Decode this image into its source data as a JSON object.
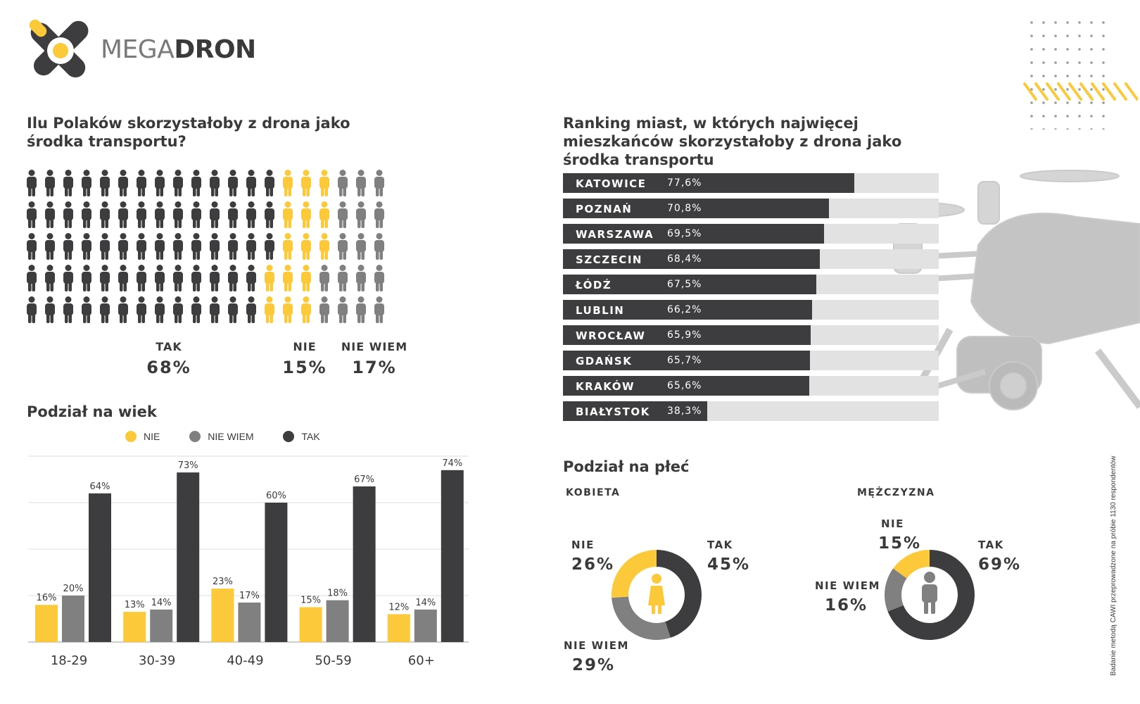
{
  "brand": {
    "name_light": "MEGA",
    "name_bold": "DRON"
  },
  "colors": {
    "tak": "#3d3d3f",
    "nie": "#fcc93a",
    "nie_wiem": "#808080",
    "track": "#e2e2e2"
  },
  "question": {
    "title": "Ilu Polaków skorzystałoby z drona jako środka transportu?",
    "answers": [
      {
        "label": "TAK",
        "value": "68%"
      },
      {
        "label": "NIE",
        "value": "15%"
      },
      {
        "label": "NIE WIEM",
        "value": "17%"
      }
    ]
  },
  "ranking": {
    "title": "Ranking miast, w których najwięcej mieszkańców skorzystałoby z drona jako środka transportu",
    "rows": [
      {
        "city": "KATOWICE",
        "label": "77,6%",
        "value": 77.6
      },
      {
        "city": "POZNAŃ",
        "label": "70,8%",
        "value": 70.8
      },
      {
        "city": "WARSZAWA",
        "label": "69,5%",
        "value": 69.5
      },
      {
        "city": "SZCZECIN",
        "label": "68,4%",
        "value": 68.4
      },
      {
        "city": "ŁÓDŹ",
        "label": "67,5%",
        "value": 67.5
      },
      {
        "city": "LUBLIN",
        "label": "66,2%",
        "value": 66.2
      },
      {
        "city": "WROCŁAW",
        "label": "65,9%",
        "value": 65.9
      },
      {
        "city": "GDAŃSK",
        "label": "65,7%",
        "value": 65.7
      },
      {
        "city": "KRAKÓW",
        "label": "65,6%",
        "value": 65.6
      },
      {
        "city": "BIAŁYSTOK",
        "label": "38,3%",
        "value": 38.3
      }
    ]
  },
  "age": {
    "title": "Podział na wiek",
    "legend": [
      "NIE",
      "NIE WIEM",
      "TAK"
    ]
  },
  "gender": {
    "title": "Podział na płeć",
    "kobieta": {
      "name": "KOBIETA",
      "nie": {
        "label": "NIE",
        "value": "26%"
      },
      "tak": {
        "label": "TAK",
        "value": "45%"
      },
      "nie_wiem": {
        "label": "NIE WIEM",
        "value": "29%"
      }
    },
    "mezczyzna": {
      "name": "MĘŻCZYZNA",
      "nie": {
        "label": "NIE",
        "value": "15%"
      },
      "tak": {
        "label": "TAK",
        "value": "69%"
      },
      "nie_wiem": {
        "label": "NIE WIEM",
        "value": "16%"
      }
    }
  },
  "footnote": "Badanie metodą CAWI przeprowadzone na próbie 1130 respondentów",
  "chart_data": [
    {
      "type": "bar",
      "title": "Ilu Polaków skorzystałoby z drona jako środka transportu?",
      "categories": [
        "TAK",
        "NIE",
        "NIE WIEM"
      ],
      "values": [
        68,
        15,
        17
      ]
    },
    {
      "type": "bar",
      "title": "Ranking miast, w których najwięcej mieszkańców skorzystałoby z drona jako środka transportu",
      "categories": [
        "KATOWICE",
        "POZNAŃ",
        "WARSZAWA",
        "SZCZECIN",
        "ŁÓDŹ",
        "LUBLIN",
        "WROCŁAW",
        "GDAŃSK",
        "KRAKÓW",
        "BIAŁYSTOK"
      ],
      "values": [
        77.6,
        70.8,
        69.5,
        68.4,
        67.5,
        66.2,
        65.9,
        65.7,
        65.6,
        38.3
      ]
    },
    {
      "type": "bar",
      "title": "Podział na wiek",
      "categories": [
        "18-29",
        "30-39",
        "40-49",
        "50-59",
        "60+"
      ],
      "series": [
        {
          "name": "NIE",
          "values": [
            16,
            13,
            23,
            15,
            12
          ]
        },
        {
          "name": "NIE WIEM",
          "values": [
            20,
            14,
            17,
            18,
            14
          ]
        },
        {
          "name": "TAK",
          "values": [
            64,
            73,
            60,
            67,
            74
          ]
        }
      ],
      "ylim": [
        0,
        80
      ],
      "grid": true,
      "legend": "top"
    },
    {
      "type": "pie",
      "title": "KOBIETA",
      "categories": [
        "TAK",
        "NIE WIEM",
        "NIE"
      ],
      "values": [
        45,
        29,
        26
      ]
    },
    {
      "type": "pie",
      "title": "MĘŻCZYZNA",
      "categories": [
        "TAK",
        "NIE WIEM",
        "NIE"
      ],
      "values": [
        69,
        16,
        15
      ]
    }
  ]
}
